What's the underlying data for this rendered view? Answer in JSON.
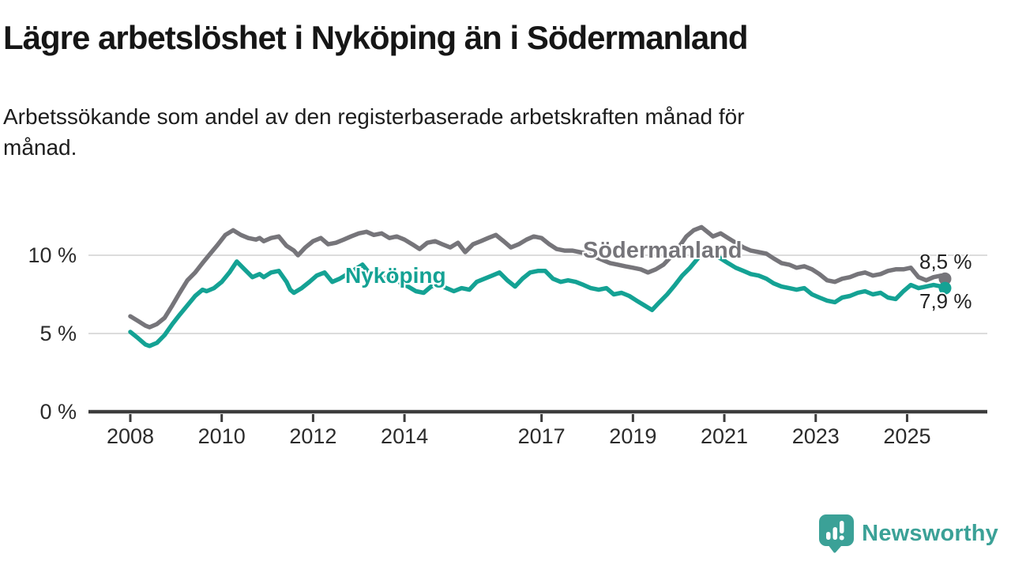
{
  "title": "Lägre arbetslöshet i Nyköping än i Södermanland",
  "subtitle": {
    "lines": [
      "Arbetssökande som andel av den registerbaserade arbetskraften månad för",
      "månad."
    ]
  },
  "logo": {
    "name": "Newsworthy"
  },
  "colors": {
    "nykoping": "#14a294",
    "sodermanland": "#76757a",
    "gridline": "#dcdcdc",
    "axis": "#3c3c3c",
    "tick_text": "#2b2b2b",
    "value_text": "#222222",
    "logo_teal": "#3ba197",
    "title_text": "#161616"
  },
  "chart_data": {
    "type": "line",
    "title": "Lägre arbetslöshet i Nyköping än i Södermanland",
    "xlabel": "",
    "ylabel": "",
    "unit": "%",
    "grid": "horizontal",
    "legend_position": "inline-labels-on-lines",
    "xlim": [
      2007.6,
      2026.4
    ],
    "ylim": [
      0,
      12.5
    ],
    "x_ticks": [
      2008,
      2010,
      2012,
      2014,
      2017,
      2019,
      2021,
      2023,
      2025
    ],
    "y_ticks": [
      {
        "value": 0,
        "label": "0 %"
      },
      {
        "value": 5,
        "label": "5 %"
      },
      {
        "value": 10,
        "label": "10 %"
      }
    ],
    "series": [
      {
        "name": "Södermanland",
        "color": "#76757a",
        "end_label": "8,5 %",
        "end_value": 8.5,
        "points": [
          [
            2008.0,
            6.1
          ],
          [
            2008.17,
            5.8
          ],
          [
            2008.33,
            5.5
          ],
          [
            2008.42,
            5.4
          ],
          [
            2008.58,
            5.6
          ],
          [
            2008.75,
            6.0
          ],
          [
            2008.92,
            6.8
          ],
          [
            2009.08,
            7.6
          ],
          [
            2009.25,
            8.4
          ],
          [
            2009.42,
            8.9
          ],
          [
            2009.58,
            9.5
          ],
          [
            2009.75,
            10.1
          ],
          [
            2009.92,
            10.7
          ],
          [
            2010.08,
            11.3
          ],
          [
            2010.25,
            11.6
          ],
          [
            2010.42,
            11.3
          ],
          [
            2010.58,
            11.1
          ],
          [
            2010.75,
            11.0
          ],
          [
            2010.83,
            11.1
          ],
          [
            2010.92,
            10.9
          ],
          [
            2011.08,
            11.1
          ],
          [
            2011.25,
            11.2
          ],
          [
            2011.42,
            10.6
          ],
          [
            2011.58,
            10.3
          ],
          [
            2011.67,
            10.0
          ],
          [
            2011.83,
            10.5
          ],
          [
            2012.0,
            10.9
          ],
          [
            2012.17,
            11.1
          ],
          [
            2012.33,
            10.7
          ],
          [
            2012.5,
            10.8
          ],
          [
            2012.67,
            11.0
          ],
          [
            2012.83,
            11.2
          ],
          [
            2013.0,
            11.4
          ],
          [
            2013.17,
            11.5
          ],
          [
            2013.33,
            11.3
          ],
          [
            2013.5,
            11.4
          ],
          [
            2013.67,
            11.1
          ],
          [
            2013.83,
            11.2
          ],
          [
            2014.0,
            11.0
          ],
          [
            2014.17,
            10.7
          ],
          [
            2014.33,
            10.4
          ],
          [
            2014.5,
            10.8
          ],
          [
            2014.67,
            10.9
          ],
          [
            2014.83,
            10.7
          ],
          [
            2015.0,
            10.5
          ],
          [
            2015.17,
            10.8
          ],
          [
            2015.33,
            10.2
          ],
          [
            2015.5,
            10.7
          ],
          [
            2015.67,
            10.9
          ],
          [
            2015.83,
            11.1
          ],
          [
            2016.0,
            11.3
          ],
          [
            2016.17,
            10.9
          ],
          [
            2016.33,
            10.5
          ],
          [
            2016.5,
            10.7
          ],
          [
            2016.67,
            11.0
          ],
          [
            2016.83,
            11.2
          ],
          [
            2017.0,
            11.1
          ],
          [
            2017.17,
            10.7
          ],
          [
            2017.33,
            10.4
          ],
          [
            2017.5,
            10.3
          ],
          [
            2017.67,
            10.3
          ],
          [
            2017.83,
            10.2
          ],
          [
            2018.0,
            10.1
          ],
          [
            2018.17,
            9.9
          ],
          [
            2018.33,
            9.7
          ],
          [
            2018.5,
            9.5
          ],
          [
            2018.67,
            9.4
          ],
          [
            2018.83,
            9.3
          ],
          [
            2019.0,
            9.2
          ],
          [
            2019.17,
            9.1
          ],
          [
            2019.33,
            8.9
          ],
          [
            2019.5,
            9.1
          ],
          [
            2019.67,
            9.4
          ],
          [
            2019.83,
            9.9
          ],
          [
            2020.0,
            10.5
          ],
          [
            2020.17,
            11.2
          ],
          [
            2020.33,
            11.6
          ],
          [
            2020.5,
            11.8
          ],
          [
            2020.67,
            11.4
          ],
          [
            2020.75,
            11.2
          ],
          [
            2020.92,
            11.4
          ],
          [
            2021.08,
            11.1
          ],
          [
            2021.25,
            10.8
          ],
          [
            2021.42,
            10.5
          ],
          [
            2021.58,
            10.3
          ],
          [
            2021.75,
            10.2
          ],
          [
            2021.92,
            10.1
          ],
          [
            2022.08,
            9.8
          ],
          [
            2022.25,
            9.5
          ],
          [
            2022.42,
            9.4
          ],
          [
            2022.58,
            9.2
          ],
          [
            2022.75,
            9.3
          ],
          [
            2022.92,
            9.1
          ],
          [
            2023.08,
            8.8
          ],
          [
            2023.25,
            8.4
          ],
          [
            2023.42,
            8.3
          ],
          [
            2023.58,
            8.5
          ],
          [
            2023.75,
            8.6
          ],
          [
            2023.92,
            8.8
          ],
          [
            2024.08,
            8.9
          ],
          [
            2024.25,
            8.7
          ],
          [
            2024.42,
            8.8
          ],
          [
            2024.58,
            9.0
          ],
          [
            2024.75,
            9.1
          ],
          [
            2024.92,
            9.1
          ],
          [
            2025.08,
            9.2
          ],
          [
            2025.25,
            8.6
          ],
          [
            2025.42,
            8.4
          ],
          [
            2025.58,
            8.6
          ],
          [
            2025.75,
            8.7
          ],
          [
            2025.83,
            8.5
          ]
        ]
      },
      {
        "name": "Nyköping",
        "color": "#14a294",
        "end_label": "7,9 %",
        "end_value": 7.9,
        "points": [
          [
            2008.0,
            5.1
          ],
          [
            2008.17,
            4.7
          ],
          [
            2008.33,
            4.3
          ],
          [
            2008.42,
            4.2
          ],
          [
            2008.58,
            4.4
          ],
          [
            2008.75,
            4.9
          ],
          [
            2008.92,
            5.6
          ],
          [
            2009.08,
            6.2
          ],
          [
            2009.25,
            6.8
          ],
          [
            2009.42,
            7.4
          ],
          [
            2009.58,
            7.8
          ],
          [
            2009.67,
            7.7
          ],
          [
            2009.83,
            7.9
          ],
          [
            2010.0,
            8.3
          ],
          [
            2010.17,
            8.9
          ],
          [
            2010.33,
            9.6
          ],
          [
            2010.5,
            9.1
          ],
          [
            2010.67,
            8.6
          ],
          [
            2010.83,
            8.8
          ],
          [
            2010.92,
            8.6
          ],
          [
            2011.08,
            8.9
          ],
          [
            2011.25,
            9.0
          ],
          [
            2011.42,
            8.3
          ],
          [
            2011.5,
            7.8
          ],
          [
            2011.58,
            7.6
          ],
          [
            2011.75,
            7.9
          ],
          [
            2011.92,
            8.3
          ],
          [
            2012.08,
            8.7
          ],
          [
            2012.25,
            8.9
          ],
          [
            2012.42,
            8.3
          ],
          [
            2012.58,
            8.5
          ],
          [
            2012.75,
            8.8
          ],
          [
            2012.92,
            9.1
          ],
          [
            2013.08,
            9.4
          ],
          [
            2013.25,
            8.8
          ],
          [
            2013.42,
            9.0
          ],
          [
            2013.58,
            8.6
          ],
          [
            2013.75,
            8.7
          ],
          [
            2013.92,
            8.2
          ],
          [
            2014.08,
            8.0
          ],
          [
            2014.25,
            7.7
          ],
          [
            2014.42,
            7.6
          ],
          [
            2014.58,
            8.0
          ],
          [
            2014.75,
            8.1
          ],
          [
            2014.92,
            7.9
          ],
          [
            2015.08,
            7.7
          ],
          [
            2015.25,
            7.9
          ],
          [
            2015.42,
            7.8
          ],
          [
            2015.58,
            8.3
          ],
          [
            2015.75,
            8.5
          ],
          [
            2015.92,
            8.7
          ],
          [
            2016.08,
            8.9
          ],
          [
            2016.25,
            8.4
          ],
          [
            2016.42,
            8.0
          ],
          [
            2016.58,
            8.5
          ],
          [
            2016.75,
            8.9
          ],
          [
            2016.92,
            9.0
          ],
          [
            2017.08,
            9.0
          ],
          [
            2017.25,
            8.5
          ],
          [
            2017.42,
            8.3
          ],
          [
            2017.58,
            8.4
          ],
          [
            2017.75,
            8.3
          ],
          [
            2017.92,
            8.1
          ],
          [
            2018.08,
            7.9
          ],
          [
            2018.25,
            7.8
          ],
          [
            2018.42,
            7.9
          ],
          [
            2018.58,
            7.5
          ],
          [
            2018.75,
            7.6
          ],
          [
            2018.92,
            7.4
          ],
          [
            2019.08,
            7.1
          ],
          [
            2019.25,
            6.8
          ],
          [
            2019.42,
            6.5
          ],
          [
            2019.58,
            7.0
          ],
          [
            2019.75,
            7.5
          ],
          [
            2019.92,
            8.1
          ],
          [
            2020.08,
            8.7
          ],
          [
            2020.25,
            9.2
          ],
          [
            2020.42,
            9.8
          ],
          [
            2020.58,
            10.4
          ],
          [
            2020.75,
            10.1
          ],
          [
            2020.92,
            9.8
          ],
          [
            2021.08,
            9.5
          ],
          [
            2021.25,
            9.2
          ],
          [
            2021.42,
            9.0
          ],
          [
            2021.58,
            8.8
          ],
          [
            2021.75,
            8.7
          ],
          [
            2021.92,
            8.5
          ],
          [
            2022.08,
            8.2
          ],
          [
            2022.25,
            8.0
          ],
          [
            2022.42,
            7.9
          ],
          [
            2022.58,
            7.8
          ],
          [
            2022.75,
            7.9
          ],
          [
            2022.92,
            7.5
          ],
          [
            2023.08,
            7.3
          ],
          [
            2023.25,
            7.1
          ],
          [
            2023.42,
            7.0
          ],
          [
            2023.58,
            7.3
          ],
          [
            2023.75,
            7.4
          ],
          [
            2023.92,
            7.6
          ],
          [
            2024.08,
            7.7
          ],
          [
            2024.25,
            7.5
          ],
          [
            2024.42,
            7.6
          ],
          [
            2024.58,
            7.3
          ],
          [
            2024.75,
            7.2
          ],
          [
            2024.92,
            7.7
          ],
          [
            2025.08,
            8.1
          ],
          [
            2025.25,
            7.9
          ],
          [
            2025.42,
            8.0
          ],
          [
            2025.58,
            8.1
          ],
          [
            2025.75,
            8.0
          ],
          [
            2025.83,
            7.9
          ]
        ]
      }
    ]
  }
}
